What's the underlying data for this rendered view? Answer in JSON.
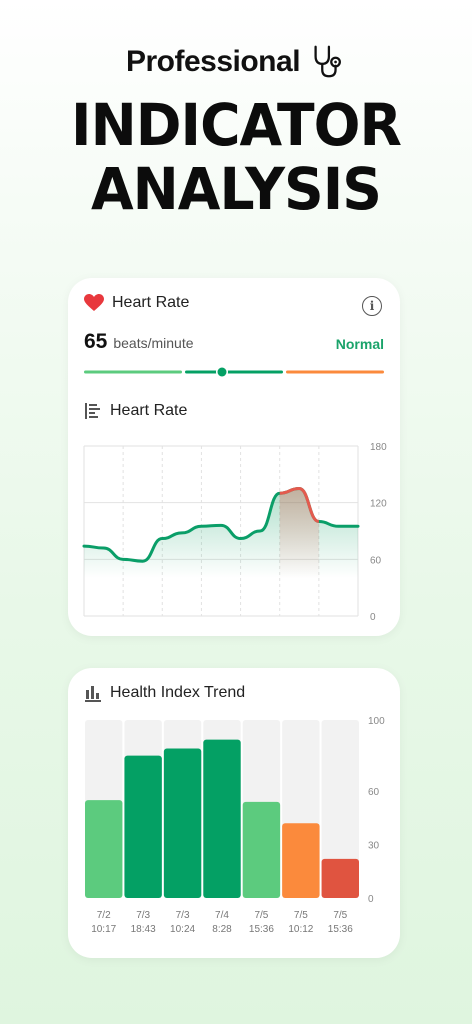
{
  "hero": {
    "line1": "Professional",
    "line2": "INDICATOR",
    "line3": "ANALYSIS",
    "icon": "stethoscope-icon"
  },
  "heart_card": {
    "title": "Heart Rate",
    "value": "65",
    "unit": "beats/minute",
    "status": "Normal",
    "chart_title": "Heart Rate",
    "icons": [
      "heart-icon",
      "info-icon",
      "bar-list-icon"
    ],
    "colors": {
      "green": "#1aa36a",
      "light_green": "#5ccb7e",
      "orange": "#fb8a3c",
      "red": "#e45a4e"
    }
  },
  "trend_card": {
    "title": "Health Index Trend",
    "icon": "bar-chart-icon"
  },
  "chart_data": [
    {
      "type": "line",
      "title": "Heart Rate",
      "ylim": [
        0,
        180
      ],
      "yticks": [
        0,
        60,
        120,
        180
      ],
      "x": [
        0,
        1,
        2,
        3,
        4,
        5,
        6,
        7,
        8,
        9,
        10,
        11,
        12,
        13,
        14
      ],
      "values": [
        74,
        72,
        60,
        58,
        82,
        88,
        95,
        96,
        82,
        90,
        130,
        135,
        100,
        95,
        95
      ],
      "grid": true
    },
    {
      "type": "bar",
      "title": "Health Index Trend",
      "categories": [
        [
          "7/2",
          "10:17"
        ],
        [
          "7/3",
          "18:43"
        ],
        [
          "7/3",
          "10:24"
        ],
        [
          "7/4",
          "8:28"
        ],
        [
          "7/5",
          "15:36"
        ],
        [
          "7/5",
          "10:12"
        ],
        [
          "7/5",
          "15:36"
        ]
      ],
      "values": [
        55,
        80,
        84,
        89,
        54,
        42,
        22
      ],
      "colors": [
        "#5ccb7e",
        "#04a064",
        "#04a064",
        "#04a064",
        "#5ccb7e",
        "#fb8a3c",
        "#e05440"
      ],
      "ylim": [
        0,
        100
      ],
      "yticks": [
        0,
        30,
        60,
        100
      ]
    }
  ]
}
